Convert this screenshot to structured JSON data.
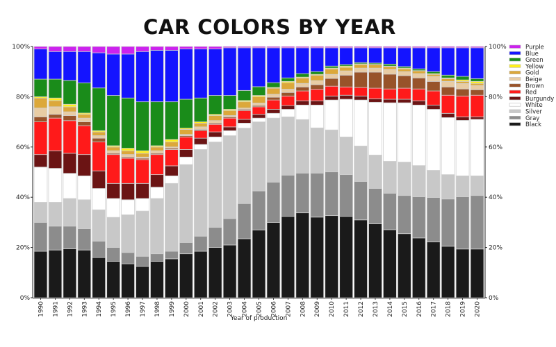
{
  "chart_data": {
    "type": "bar",
    "stacked": true,
    "normalized": true,
    "title": "CAR COLORS BY YEAR",
    "xlabel": "Year of production",
    "ylabel": "",
    "ylim": [
      0,
      100
    ],
    "yticks": [
      "0%",
      "20%",
      "40%",
      "60%",
      "80%",
      "100%"
    ],
    "ytick_values": [
      0,
      20,
      40,
      60,
      80,
      100
    ],
    "legend_position": "right",
    "categories": [
      "1990",
      "1991",
      "1992",
      "1993",
      "1994",
      "1995",
      "1996",
      "1997",
      "1998",
      "1999",
      "2000",
      "2001",
      "2002",
      "2003",
      "2004",
      "2005",
      "2006",
      "2007",
      "2008",
      "2009",
      "2010",
      "2011",
      "2012",
      "2013",
      "2014",
      "2015",
      "2016",
      "2017",
      "2018",
      "2019",
      "2020"
    ],
    "series": [
      {
        "name": "Black",
        "color": "#1a1a1a",
        "values": [
          18.5,
          19,
          19.5,
          19,
          16,
          14.5,
          13.5,
          12.5,
          14.5,
          15.5,
          17.5,
          18.5,
          20,
          21,
          23.5,
          27,
          30,
          32.4,
          33.8,
          32.1,
          32.7,
          32.4,
          31,
          29.4,
          27.1,
          25.5,
          23.8,
          22.2,
          20.5,
          19.4,
          19.4
        ]
      },
      {
        "name": "Gray",
        "color": "#8c8c8c",
        "values": [
          11.5,
          9.5,
          9,
          8.5,
          6.5,
          5.5,
          4.5,
          4,
          3,
          3,
          4.5,
          6,
          8,
          10.5,
          14,
          15.5,
          16,
          16.4,
          15.8,
          17.5,
          17.4,
          16.6,
          15.3,
          14.1,
          14.5,
          15.2,
          16.4,
          17.7,
          18.8,
          20.8,
          21.3
        ]
      },
      {
        "name": "Silver",
        "color": "#c8c8c8",
        "values": [
          8,
          9.5,
          11,
          11.5,
          12.5,
          12,
          15,
          18,
          22,
          27,
          31,
          34.5,
          34,
          33,
          30,
          27.5,
          25.5,
          23.2,
          21.3,
          18,
          16.7,
          15,
          14.1,
          13.3,
          12.7,
          13.3,
          12.4,
          10.8,
          9.7,
          8.3,
          7.8
        ]
      },
      {
        "name": "White",
        "color": "#ffffff",
        "values": [
          14,
          13.5,
          10,
          9.5,
          8.5,
          7.5,
          6,
          5,
          4.5,
          3,
          3,
          2,
          2,
          2,
          2,
          1.5,
          1.9,
          3,
          5.8,
          9.1,
          11.9,
          15,
          18.3,
          21,
          23.3,
          23.6,
          24.1,
          24.3,
          22.7,
          22.1,
          22.5
        ]
      },
      {
        "name": "Burgundy",
        "color": "#6b1414",
        "values": [
          5,
          7,
          8,
          8.5,
          7,
          6,
          6.5,
          6,
          5,
          4,
          3,
          2.5,
          2,
          1.5,
          1.5,
          1.5,
          1.6,
          1.5,
          1.7,
          1.7,
          1.6,
          1.6,
          1.6,
          1.4,
          1.4,
          1.4,
          1.7,
          1.7,
          1.7,
          1.4,
          1
        ]
      },
      {
        "name": "Red",
        "color": "#ff1a1a",
        "values": [
          13,
          13,
          13,
          11.5,
          11.5,
          11.5,
          10,
          9.5,
          8,
          6.5,
          5,
          3,
          3,
          3.5,
          3.5,
          3,
          3.7,
          3.8,
          3.9,
          4.6,
          3.9,
          3.3,
          3.4,
          4.2,
          4.1,
          4.4,
          4.7,
          5.6,
          7.2,
          8.3,
          8.6
        ]
      },
      {
        "name": "Brown",
        "color": "#98532a",
        "values": [
          2,
          1.5,
          2,
          1.5,
          1.5,
          0.5,
          0.5,
          0.5,
          0.5,
          0.5,
          0.5,
          0.5,
          0.5,
          0.5,
          0.5,
          0.5,
          1.1,
          1.4,
          1.6,
          1.8,
          3.1,
          4.7,
          6.1,
          6.4,
          5.9,
          5,
          4.4,
          3.8,
          3.3,
          2.8,
          2.2
        ]
      },
      {
        "name": "Beige",
        "color": "#e8cca4",
        "values": [
          3.5,
          3,
          1.5,
          1.5,
          1,
          1,
          1,
          0.5,
          1,
          0.5,
          0.5,
          1,
          1,
          0.5,
          0.5,
          1,
          1.2,
          1.3,
          1.4,
          1.6,
          1.6,
          1.7,
          1.6,
          1.6,
          1.9,
          1.6,
          1.7,
          2,
          2.2,
          2.2,
          1.7
        ]
      },
      {
        "name": "Gold",
        "color": "#dca83a",
        "values": [
          4,
          2.5,
          2,
          1.5,
          1.5,
          1.5,
          1.5,
          1.5,
          1.5,
          2,
          2,
          1.5,
          2,
          2,
          2.5,
          2.5,
          2.4,
          2.6,
          2.2,
          2.2,
          2.2,
          1.4,
          1.4,
          1.4,
          1.1,
          1.1,
          1.1,
          0.8,
          1.1,
          0.8,
          0.8
        ]
      },
      {
        "name": "Yellow",
        "color": "#fff01a",
        "values": [
          0.5,
          1,
          1,
          0.5,
          0.5,
          0.5,
          1,
          1,
          0.5,
          1,
          0.5,
          0.5,
          0.5,
          0.5,
          0.5,
          0.5,
          0.3,
          0.5,
          0.3,
          0.3,
          0.3,
          0.5,
          0.3,
          0.1,
          0.2,
          0.3,
          0.1,
          0.3,
          0.3,
          0.6,
          0.8
        ]
      },
      {
        "name": "Green",
        "color": "#1a8c1a",
        "values": [
          7,
          7.5,
          9.5,
          12,
          17,
          20,
          20,
          19.5,
          17.5,
          15,
          11.5,
          9.5,
          7.5,
          5.5,
          4,
          3.5,
          1.9,
          1.4,
          1.4,
          1.1,
          0.8,
          0.6,
          0.5,
          0.5,
          0.8,
          0.6,
          0.7,
          0.8,
          1.1,
          1.4,
          1.1
        ]
      },
      {
        "name": "Blue",
        "color": "#1414ff",
        "values": [
          12,
          11,
          11.5,
          12.5,
          14,
          16.5,
          17.5,
          20,
          20.5,
          20.5,
          20,
          19.5,
          18.5,
          19,
          17,
          15.5,
          13.9,
          12,
          10.3,
          9.5,
          7.3,
          6.7,
          5.9,
          6.1,
          6.5,
          7.5,
          8.4,
          9.5,
          10.9,
          11.4,
          12.3
        ]
      },
      {
        "name": "Purple",
        "color": "#cc22ee",
        "values": [
          1,
          2,
          2,
          2,
          2.5,
          3,
          3,
          2,
          1.5,
          1.5,
          1,
          1,
          1,
          0.5,
          0.5,
          0.5,
          0.5,
          0.5,
          0.5,
          0.5,
          0.5,
          0.5,
          0.5,
          0.5,
          0.5,
          0.5,
          0.5,
          0.5,
          0.5,
          0.5,
          0.5
        ]
      }
    ]
  }
}
